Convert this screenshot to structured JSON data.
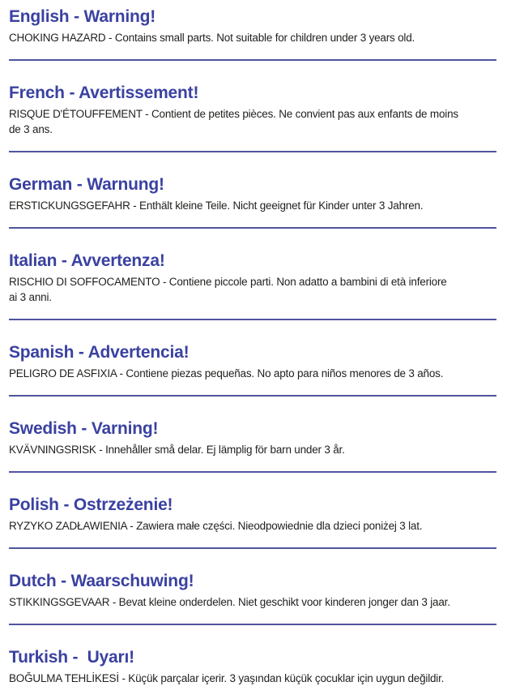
{
  "page": {
    "background_color": "#ffffff",
    "heading_color": "#3a41a1",
    "divider_color": "#51549e",
    "body_color": "#1f1f1d"
  },
  "sections": [
    {
      "heading": "English - Warning!",
      "body": "CHOKING HAZARD - Contains small parts. Not suitable for children under 3 years old."
    },
    {
      "heading": "French - Avertissement!",
      "body": "RISQUE D'ÉTOUFFEMENT - Contient de petites pièces. Ne convient pas aux enfants de moins\nde 3 ans."
    },
    {
      "heading": "German - Warnung!",
      "body": "ERSTICKUNGSGEFAHR - Enthält kleine Teile. Nicht geeignet für Kinder unter 3 Jahren."
    },
    {
      "heading": "Italian - Avvertenza!",
      "body": "RISCHIO DI SOFFOCAMENTO - Contiene piccole parti. Non adatto a bambini di età inferiore\nai 3 anni."
    },
    {
      "heading": "Spanish - Advertencia!",
      "body": "PELIGRO DE ASFIXIA - Contiene piezas pequeñas. No apto para niños menores de 3 años."
    },
    {
      "heading": "Swedish - Varning!",
      "body": "KVÄVNINGSRISK - Innehåller små delar. Ej lämplig för barn under 3 år."
    },
    {
      "heading": "Polish - Ostrzeżenie!",
      "body": "RYZYKO ZADŁAWIENIA - Zawiera małe części. Nieodpowiednie dla dzieci poniżej 3 lat."
    },
    {
      "heading": "Dutch - Waarschuwing!",
      "body": "STIKKINGSGEVAAR - Bevat kleine onderdelen. Niet geschikt voor kinderen jonger dan 3 jaar."
    },
    {
      "heading": "Turkish -  Uyarı!",
      "body": "BOĞULMA TEHLİKESİ - Küçük parçalar içerir. 3 yaşından küçük çocuklar için uygun değildir."
    }
  ]
}
